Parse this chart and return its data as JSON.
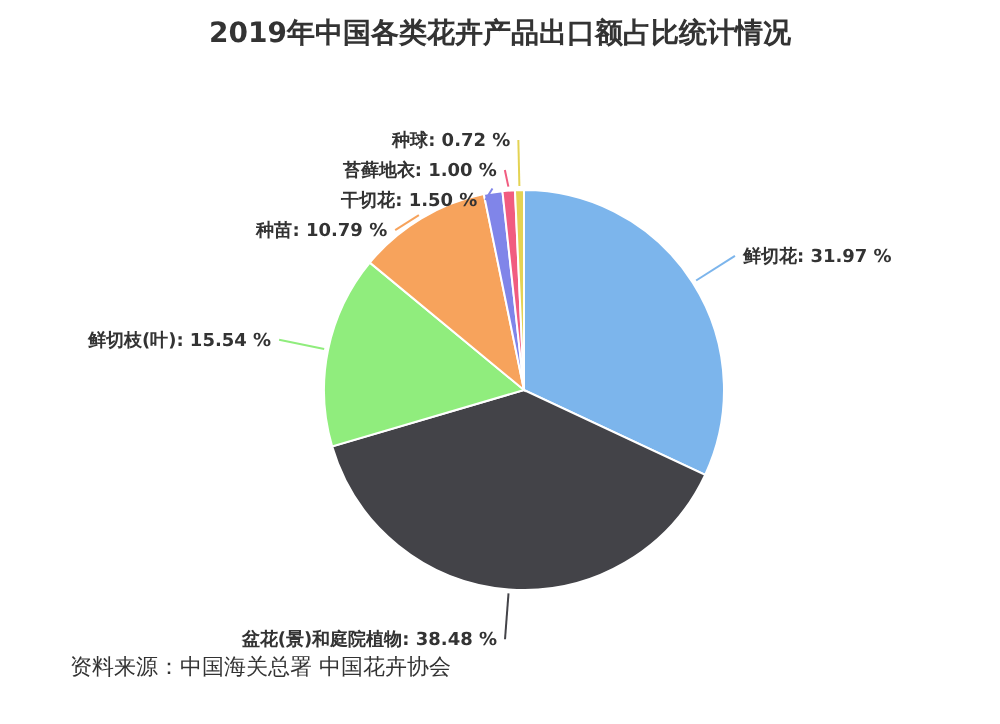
{
  "chart_data": {
    "type": "pie",
    "title": "2019年中国各类花卉产品出口额占比统计情况",
    "categories": [
      "鲜切花",
      "盆花(景)和庭院植物",
      "鲜切枝(叶)",
      "种苗",
      "干切花",
      "苔藓地衣",
      "种球"
    ],
    "values": [
      31.97,
      38.48,
      15.54,
      10.79,
      1.5,
      1.0,
      0.72
    ],
    "value_labels": [
      "31.97 %",
      "38.48 %",
      "15.54 %",
      "10.79 %",
      "1.50 %",
      "1.00 %",
      "0.72 %"
    ],
    "colors": [
      "#7cb5ec",
      "#434348",
      "#90ed7d",
      "#f7a35c",
      "#8085e9",
      "#f15c80",
      "#e4d354"
    ],
    "annotations": [
      "资料来源：中国海关总署 中国花卉协会"
    ]
  }
}
